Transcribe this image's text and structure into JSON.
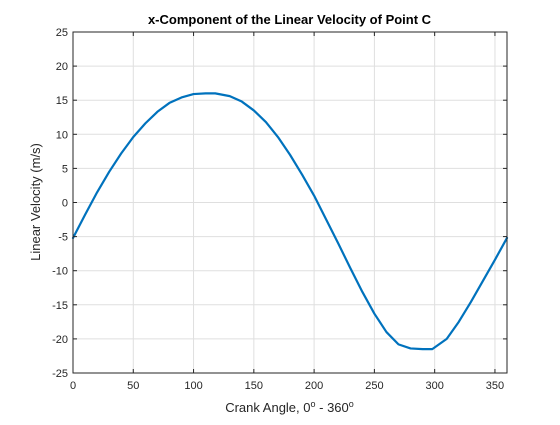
{
  "chart_data": {
    "type": "line",
    "title": "x-Component of the Linear Velocity of Point C",
    "xlabel": {
      "prefix": "Crank Angle, 0",
      "sup1": "o",
      "middle": " - 360",
      "sup2": "o"
    },
    "ylabel": "Linear Velocity (m/s)",
    "xlim": [
      0,
      360
    ],
    "ylim": [
      -25,
      25
    ],
    "x_ticks": [
      0,
      50,
      100,
      150,
      200,
      250,
      300,
      350
    ],
    "y_ticks": [
      -25,
      -20,
      -15,
      -10,
      -5,
      0,
      5,
      10,
      15,
      20,
      25
    ],
    "grid": true,
    "colors": {
      "line": "#0072BD",
      "grid": "#DFDFDF",
      "axes": "#262626"
    },
    "series": [
      {
        "x": [
          0,
          10,
          20,
          30,
          40,
          50,
          60,
          70,
          80,
          90,
          100,
          110,
          118,
          130,
          140,
          150,
          160,
          170,
          180,
          190,
          200,
          210,
          220,
          230,
          240,
          250,
          260,
          270,
          280,
          290,
          298,
          310,
          320,
          330,
          340,
          350,
          360
        ],
        "y": [
          -5.2,
          -1.8,
          1.5,
          4.5,
          7.2,
          9.6,
          11.6,
          13.3,
          14.6,
          15.4,
          15.9,
          16.0,
          16.0,
          15.6,
          14.8,
          13.5,
          11.8,
          9.6,
          7.0,
          4.1,
          1.0,
          -2.5,
          -6.0,
          -9.6,
          -13.1,
          -16.3,
          -19.0,
          -20.8,
          -21.4,
          -21.5,
          -21.5,
          -20.0,
          -17.5,
          -14.6,
          -11.5,
          -8.4,
          -5.2
        ]
      }
    ]
  }
}
